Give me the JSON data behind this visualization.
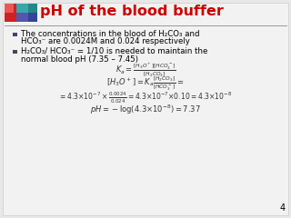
{
  "title": "pH of the blood buffer",
  "title_color": "#CC0000",
  "slide_bg": "#E8E8E8",
  "content_bg": "#F5F5F5",
  "bullet1_line1": "The concentrations in the blood of H₂CO₃ and",
  "bullet1_line2": "HCO₃⁻ are 0.0024M and 0.024 respectively",
  "bullet2_line1": "H₂CO₃/ HCO₃⁻ = 1/10 is needed to maintain the",
  "bullet2_line2": "normal blood pH (7.35 – 7.45)",
  "eq1a": "$K_a = $",
  "eq1b": "$\\frac{[H_3O^+][HCO_3^-]}{[H_2CO_3]}$",
  "eq2a": "$[H_3O^+] = K_a$",
  "eq2b": "$\\frac{[H_2CO_3]}{[HCO_3^-]}$",
  "eq2c": "$=$",
  "eq3": "$= 4.3{\\times}10^{-7} \\times \\frac{0.0024}{0.024} = 4.3{\\times}10^{-7} {\\times}0.10 = 4.3{\\times}10^{-8}$",
  "eq4": "$pH = -\\log(4.3{\\times}10^{-8}) = 7.37$",
  "page_num": "4",
  "title_underline_color": "#999999",
  "bullet_color": "#444466",
  "icon_colors": {
    "red_large": "#CC2222",
    "red_small": "#EE5555",
    "blue_purple": "#5555AA",
    "teal_top": "#33AAAA",
    "teal_dark": "#228888",
    "blue_right": "#334499"
  }
}
